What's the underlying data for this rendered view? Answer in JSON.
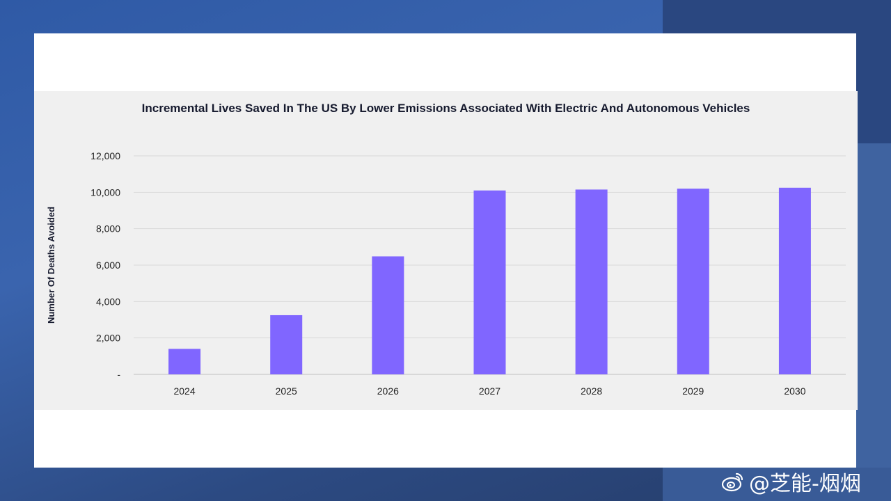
{
  "watermark": {
    "text": "@芝能-烟烟",
    "icon": "weibo-icon"
  },
  "chart_data": {
    "type": "bar",
    "title": "Incremental Lives Saved In The US By Lower Emissions Associated With Electric And Autonomous Vehicles",
    "xlabel": "",
    "ylabel": "Number Of Deaths Avoided",
    "categories": [
      "2024",
      "2025",
      "2026",
      "2027",
      "2028",
      "2029",
      "2030"
    ],
    "values": [
      1400,
      3250,
      6480,
      10100,
      10150,
      10200,
      10250
    ],
    "ylim": [
      0,
      12000
    ],
    "yticks": [
      0,
      2000,
      4000,
      6000,
      8000,
      10000,
      12000
    ],
    "ytick_labels": [
      "-",
      "2,000",
      "4,000",
      "6,000",
      "8,000",
      "10,000",
      "12,000"
    ],
    "bar_color": "#8066ff",
    "grid": true,
    "legend": "none"
  }
}
